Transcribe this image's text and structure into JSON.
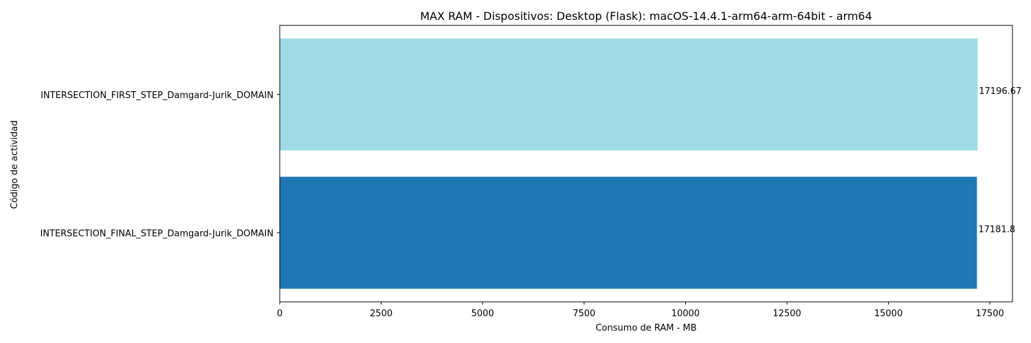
{
  "chart_data": {
    "type": "bar",
    "orientation": "horizontal",
    "title": "MAX RAM - Dispositivos: Desktop (Flask): macOS-14.4.1-arm64-arm-64bit - arm64",
    "xlabel": "Consumo de RAM - MB",
    "ylabel": "Código de actividad",
    "categories": [
      "INTERSECTION_FIRST_STEP_Damgard-Jurik_DOMAIN",
      "INTERSECTION_FINAL_STEP_Damgard-Jurik_DOMAIN"
    ],
    "values": [
      17196.67,
      17181.8
    ],
    "data_labels": [
      "17196.67",
      "17181.8"
    ],
    "colors": [
      "#9fdae5",
      "#1f77b4"
    ],
    "xlim": [
      0,
      18056.5
    ],
    "xticks": [
      0,
      2500,
      5000,
      7500,
      10000,
      12500,
      15000,
      17500
    ],
    "xtick_labels": [
      "0",
      "2500",
      "5000",
      "7500",
      "10000",
      "12500",
      "15000",
      "17500"
    ],
    "grid": false,
    "legend": "none"
  }
}
